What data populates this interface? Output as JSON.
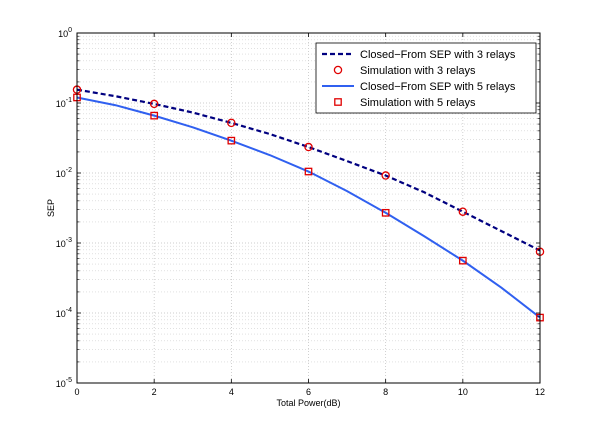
{
  "chart_data": {
    "type": "line",
    "title": "",
    "xlabel": "Total Power(dB)",
    "ylabel": "SEP",
    "xlim": [
      0,
      12
    ],
    "ylim": [
      1e-05,
      1
    ],
    "yscale": "log",
    "grid": true,
    "legend_position": "top-right",
    "x_ticks": [
      0,
      2,
      4,
      6,
      8,
      10,
      12
    ],
    "y_ticks": [
      {
        "value": 1,
        "base": "10",
        "exp": "0"
      },
      {
        "value": 0.1,
        "base": "10",
        "exp": "-1"
      },
      {
        "value": 0.01,
        "base": "10",
        "exp": "-2"
      },
      {
        "value": 0.001,
        "base": "10",
        "exp": "-3"
      },
      {
        "value": 0.0001,
        "base": "10",
        "exp": "-4"
      },
      {
        "value": 1e-05,
        "base": "10",
        "exp": "-5"
      }
    ],
    "series": [
      {
        "name": "Closed−From SEP with 3 relays",
        "kind": "line",
        "style": "dashed",
        "color": "#000080",
        "x": [
          0,
          1,
          2,
          3,
          4,
          5,
          6,
          7,
          8,
          9,
          10,
          11,
          12
        ],
        "y": [
          0.155,
          0.125,
          0.097,
          0.073,
          0.052,
          0.036,
          0.0235,
          0.0148,
          0.0092,
          0.0053,
          0.0028,
          0.00148,
          0.00078
        ]
      },
      {
        "name": "Simulation with 3 relays",
        "kind": "marker",
        "marker": "circle",
        "color": "#e00000",
        "x": [
          0,
          2,
          4,
          6,
          8,
          10,
          12
        ],
        "y": [
          0.155,
          0.097,
          0.052,
          0.0235,
          0.0092,
          0.0028,
          0.00075
        ]
      },
      {
        "name": "Closed−From SEP with 5 relays",
        "kind": "line",
        "style": "solid",
        "color": "#3060f0",
        "x": [
          0,
          1,
          2,
          3,
          4,
          5,
          6,
          7,
          8,
          9,
          10,
          11,
          12
        ],
        "y": [
          0.12,
          0.093,
          0.066,
          0.045,
          0.029,
          0.018,
          0.0105,
          0.0055,
          0.0027,
          0.00125,
          0.00056,
          0.00023,
          8.6e-05
        ]
      },
      {
        "name": "Simulation with 5 relays",
        "kind": "marker",
        "marker": "square",
        "color": "#e00000",
        "x": [
          0,
          2,
          4,
          6,
          8,
          10,
          12
        ],
        "y": [
          0.12,
          0.066,
          0.029,
          0.0105,
          0.0027,
          0.00056,
          8.6e-05
        ]
      }
    ]
  }
}
